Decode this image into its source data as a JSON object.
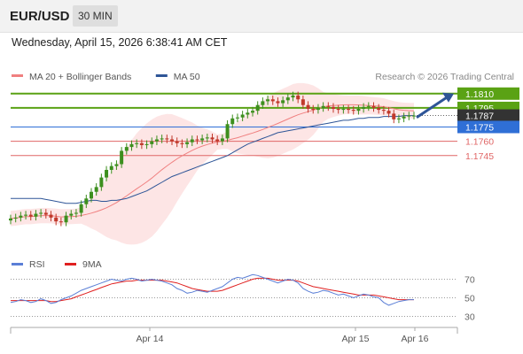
{
  "header": {
    "symbol": "EUR/USD",
    "interval": "30 MIN"
  },
  "timestamp": "Wednesday, April 15, 2026 6:38:41 AM CET",
  "colors": {
    "ma20": "#f08080",
    "ma50": "#2e5597",
    "bollinger_fill": "#fde0e0",
    "candle_up": "#3d8f1e",
    "candle_down": "#c0392b",
    "resistance": "#5aa214",
    "pivot": "#2f6fd6",
    "support": "#e06666",
    "last_price": "#333333",
    "arrow": "#2e5597",
    "rsi": "#5b7fd6",
    "rsi_ma": "#e02020"
  },
  "chart_data": [
    {
      "type": "candlestick",
      "legend": [
        {
          "label": "MA 20 + Bollinger Bands",
          "key": "ma20"
        },
        {
          "label": "MA 50",
          "key": "ma50"
        }
      ],
      "attribution": "Research © 2026 Trading Central",
      "x_ticks": [
        "Apr 14",
        "Apr 15",
        "Apr 16"
      ],
      "levels": [
        {
          "value": 1.181,
          "label": "1.1810",
          "kind": "resistance"
        },
        {
          "value": 1.1795,
          "label": "1.1795",
          "kind": "resistance"
        },
        {
          "value": 1.1787,
          "label": "1.1787",
          "kind": "last_price"
        },
        {
          "value": 1.1775,
          "label": "1.1775",
          "kind": "pivot"
        },
        {
          "value": 1.176,
          "label": "1.1760",
          "kind": "support"
        },
        {
          "value": 1.1745,
          "label": "1.1745",
          "kind": "support"
        }
      ],
      "projection": {
        "from": 1.1785,
        "to": 1.181
      },
      "closes": [
        1.1679,
        1.168,
        1.1682,
        1.1683,
        1.1681,
        1.1684,
        1.1685,
        1.1683,
        1.168,
        1.1676,
        1.1675,
        1.1682,
        1.1684,
        1.1685,
        1.1694,
        1.17,
        1.1707,
        1.1712,
        1.1722,
        1.173,
        1.1734,
        1.1736,
        1.175,
        1.1754,
        1.1757,
        1.1758,
        1.1756,
        1.1757,
        1.176,
        1.1762,
        1.1763,
        1.1762,
        1.176,
        1.1758,
        1.1757,
        1.1759,
        1.1762,
        1.1761,
        1.1763,
        1.1764,
        1.1762,
        1.176,
        1.1763,
        1.1778,
        1.1784,
        1.1785,
        1.1788,
        1.179,
        1.1792,
        1.1798,
        1.1802,
        1.1804,
        1.1802,
        1.18,
        1.1803,
        1.1806,
        1.1808,
        1.1804,
        1.1798,
        1.1794,
        1.1793,
        1.1795,
        1.1797,
        1.1796,
        1.1794,
        1.1793,
        1.1794,
        1.1793,
        1.1792,
        1.1794,
        1.1796,
        1.1797,
        1.1795,
        1.1793,
        1.1792,
        1.1789,
        1.1783,
        1.1784,
        1.1786,
        1.1787,
        1.1787
      ],
      "ma50": [
        1.17,
        1.17,
        1.17,
        1.17,
        1.17,
        1.17,
        1.17,
        1.1699,
        1.1698,
        1.1697,
        1.1696,
        1.1695,
        1.1695,
        1.1695,
        1.1696,
        1.1697,
        1.1698,
        1.1698,
        1.1697,
        1.1697,
        1.1698,
        1.1698,
        1.1699,
        1.17,
        1.1702,
        1.1704,
        1.1706,
        1.1708,
        1.1711,
        1.1714,
        1.1717,
        1.172,
        1.1723,
        1.1725,
        1.1727,
        1.1729,
        1.1731,
        1.1733,
        1.1735,
        1.1737,
        1.1739,
        1.1741,
        1.1743,
        1.1745,
        1.1748,
        1.1751,
        1.1754,
        1.1757,
        1.1759,
        1.1761,
        1.1763,
        1.1765,
        1.1767,
        1.1769,
        1.177,
        1.1771,
        1.1772,
        1.1773,
        1.1774,
        1.1775,
        1.1776,
        1.1777,
        1.1778,
        1.1779,
        1.178,
        1.1781,
        1.1782,
        1.1782,
        1.1783,
        1.1784,
        1.1784,
        1.1785,
        1.1785,
        1.1785,
        1.1786,
        1.1786,
        1.1786,
        1.1786,
        1.1787,
        1.1787,
        1.1787
      ],
      "ylim": [
        1.1665,
        1.182
      ]
    },
    {
      "type": "line",
      "legend": [
        {
          "label": "RSI",
          "key": "rsi"
        },
        {
          "label": "9MA",
          "key": "rsi_ma"
        }
      ],
      "y_ticks": [
        70,
        50,
        30
      ],
      "ylim": [
        20,
        80
      ],
      "rsi": [
        45,
        46,
        48,
        47,
        45,
        46,
        49,
        47,
        44,
        45,
        48,
        50,
        52,
        55,
        58,
        60,
        62,
        64,
        66,
        68,
        70,
        69,
        68,
        70,
        71,
        70,
        68,
        69,
        70,
        69,
        68,
        66,
        64,
        60,
        58,
        55,
        56,
        58,
        57,
        56,
        58,
        60,
        62,
        66,
        70,
        72,
        71,
        73,
        75,
        74,
        72,
        70,
        68,
        66,
        68,
        70,
        69,
        66,
        60,
        57,
        55,
        56,
        58,
        57,
        55,
        53,
        54,
        52,
        50,
        52,
        54,
        53,
        51,
        50,
        45,
        42,
        44,
        46,
        47,
        48,
        48
      ],
      "ma": [
        47,
        47,
        47,
        47,
        47,
        47,
        47,
        47,
        46,
        46,
        47,
        48,
        49,
        51,
        53,
        55,
        57,
        59,
        61,
        63,
        65,
        66,
        67,
        68,
        68,
        69,
        69,
        69,
        69,
        69,
        69,
        68,
        67,
        66,
        64,
        62,
        60,
        59,
        58,
        57,
        57,
        57,
        58,
        60,
        62,
        64,
        66,
        68,
        70,
        71,
        71,
        71,
        70,
        69,
        69,
        69,
        69,
        68,
        66,
        64,
        62,
        61,
        60,
        59,
        58,
        57,
        56,
        55,
        54,
        53,
        53,
        53,
        53,
        52,
        51,
        50,
        49,
        48,
        48,
        48,
        48
      ]
    }
  ]
}
